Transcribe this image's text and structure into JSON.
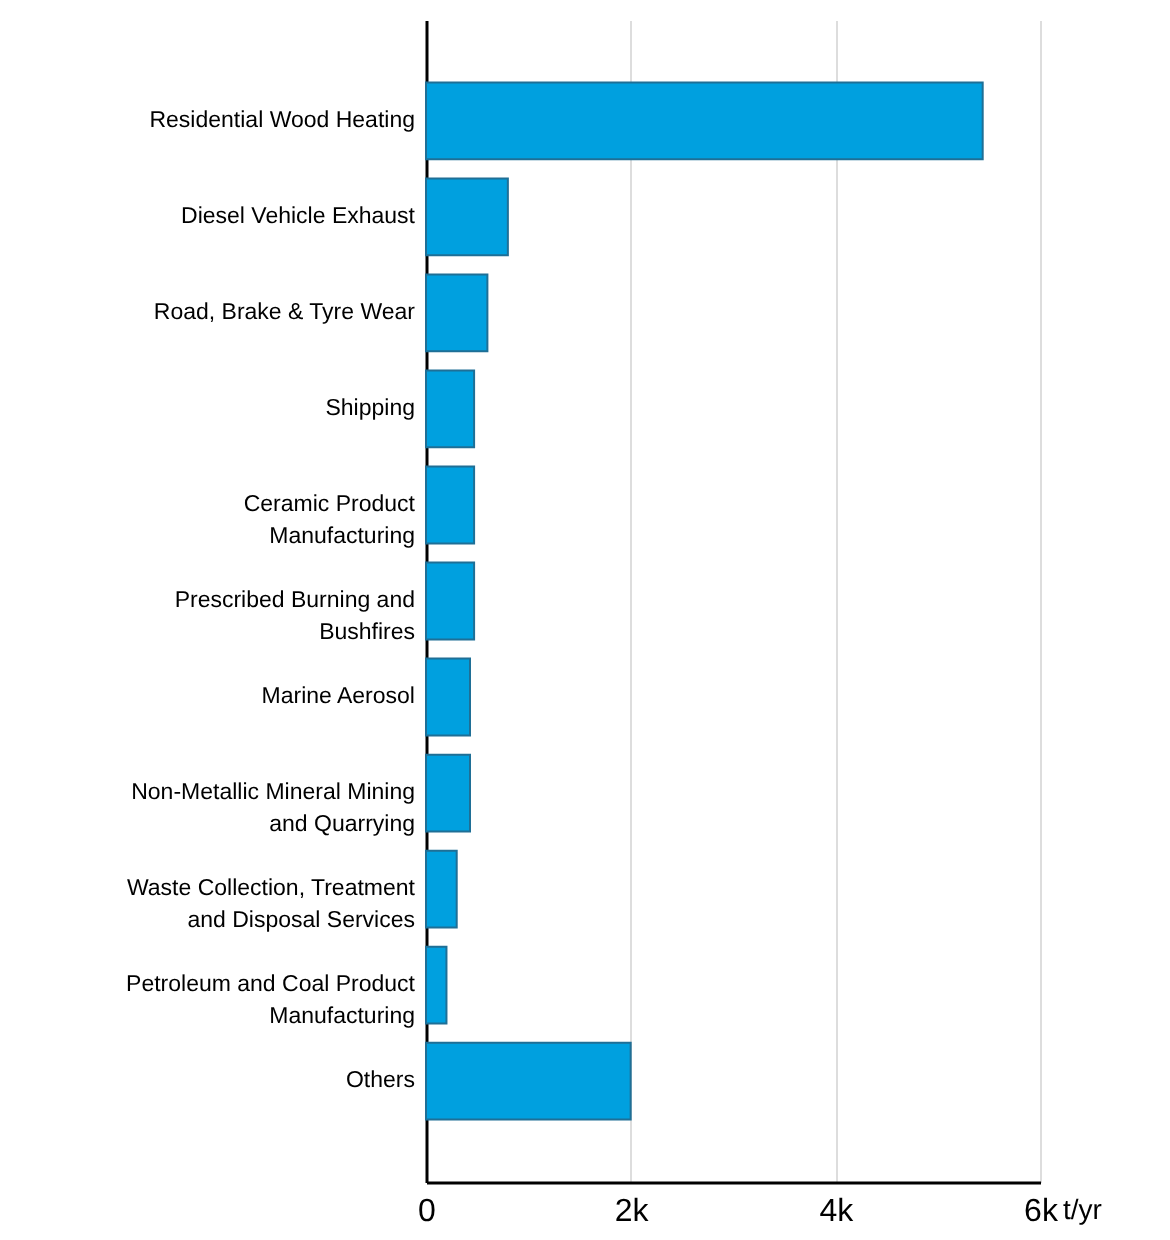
{
  "chart_data": {
    "type": "bar",
    "orientation": "horizontal",
    "xlabel": "t/yr",
    "categories": [
      "Residential Wood Heating",
      "Diesel Vehicle Exhaust",
      "Road, Brake & Tyre Wear",
      "Shipping",
      "Ceramic Product Manufacturing",
      "Prescribed Burning and Bushfires",
      "Marine Aerosol",
      "Non-Metallic Mineral Mining and Quarrying",
      "Waste Collection, Treatment and Disposal Services",
      "Petroleum and Coal Product Manufacturing",
      "Others"
    ],
    "values": [
      5440,
      800,
      600,
      470,
      470,
      470,
      430,
      430,
      300,
      200,
      2000
    ],
    "color": "#00a0df",
    "xlim": [
      0,
      6000
    ],
    "xticks": [
      {
        "value": 0,
        "label": "0"
      },
      {
        "value": 2000,
        "label": "2k"
      },
      {
        "value": 4000,
        "label": "4k"
      },
      {
        "value": 6000,
        "label": "6k"
      }
    ],
    "grid": "x"
  }
}
